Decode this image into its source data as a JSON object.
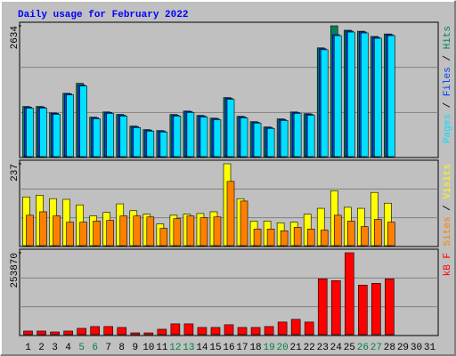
{
  "chart_data": [
    {
      "type": "bar",
      "title": "Daily usage for February 2022",
      "x": [
        1,
        2,
        3,
        4,
        5,
        6,
        7,
        8,
        9,
        10,
        11,
        12,
        13,
        14,
        15,
        16,
        17,
        18,
        19,
        20,
        21,
        22,
        23,
        24,
        25,
        26,
        27,
        28,
        29,
        30,
        31
      ],
      "ylim": [
        0,
        2634
      ],
      "yticks": [
        2634
      ],
      "grid": true,
      "legend_separator": " / ",
      "series": [
        {
          "name": "Hits",
          "color": "#00805c",
          "values": [
            1010,
            1010,
            880,
            1275,
            1477,
            795,
            900,
            850,
            615,
            545,
            525,
            848,
            918,
            830,
            775,
            1190,
            812,
            705,
            598,
            760,
            900,
            865,
            2190,
            2634,
            2545,
            2525,
            2420,
            2470,
            null,
            null,
            null
          ]
        },
        {
          "name": "Files",
          "color": "#0040ff",
          "values": [
            997,
            997,
            872,
            1264,
            1442,
            783,
            890,
            837,
            605,
            534,
            516,
            837,
            908,
            819,
            765,
            1175,
            801,
            694,
            587,
            748,
            890,
            854,
            2172,
            2456,
            2528,
            2510,
            2403,
            2456,
            null,
            null,
            null
          ]
        },
        {
          "name": "Pages",
          "color": "#00e0ff",
          "values": [
            977,
            977,
            852,
            1244,
            1422,
            763,
            870,
            817,
            585,
            514,
            496,
            817,
            888,
            799,
            745,
            1155,
            781,
            674,
            567,
            728,
            870,
            834,
            2152,
            2436,
            2508,
            2490,
            2383,
            2436,
            null,
            null,
            null
          ]
        }
      ]
    },
    {
      "type": "bar",
      "x": [
        1,
        2,
        3,
        4,
        5,
        6,
        7,
        8,
        9,
        10,
        11,
        12,
        13,
        14,
        15,
        16,
        17,
        18,
        19,
        20,
        21,
        22,
        23,
        24,
        25,
        26,
        27,
        28,
        29,
        30,
        31
      ],
      "ylim": [
        0,
        237
      ],
      "yticks": [
        237
      ],
      "grid": true,
      "legend_separator": " / ",
      "series": [
        {
          "name": "Visits",
          "color": "#ffff00",
          "values": [
            141,
            146,
            136,
            134,
            118,
            86,
            96,
            121,
            101,
            91,
            63,
            88,
            91,
            93,
            98,
            237,
            136,
            71,
            71,
            66,
            68,
            91,
            108,
            159,
            111,
            108,
            154,
            123,
            null,
            null,
            null
          ]
        },
        {
          "name": "Sites",
          "color": "#ff8000",
          "values": [
            88,
            98,
            86,
            68,
            68,
            71,
            73,
            86,
            86,
            83,
            50,
            78,
            86,
            81,
            83,
            186,
            129,
            48,
            48,
            43,
            53,
            48,
            45,
            88,
            71,
            55,
            76,
            68,
            null,
            null,
            null
          ]
        }
      ]
    },
    {
      "type": "bar",
      "x": [
        1,
        2,
        3,
        4,
        5,
        6,
        7,
        8,
        9,
        10,
        11,
        12,
        13,
        14,
        15,
        16,
        17,
        18,
        19,
        20,
        21,
        22,
        23,
        24,
        25,
        26,
        27,
        28,
        29,
        30,
        31
      ],
      "ylim": [
        0,
        253870
      ],
      "yticks": [
        253870
      ],
      "grid": true,
      "highlight_x": [
        5,
        6,
        12,
        13,
        19,
        20,
        26,
        27
      ],
      "highlight_color": "#008040",
      "series": [
        {
          "name": "kB F",
          "color": "#ff0000",
          "values": [
            11160,
            11160,
            8370,
            11160,
            19530,
            25110,
            25110,
            22320,
            5580,
            5580,
            16740,
            33480,
            33480,
            22320,
            22320,
            30690,
            22320,
            22320,
            25110,
            39060,
            47430,
            39060,
            172980,
            167400,
            253870,
            153450,
            159030,
            172980,
            null,
            null,
            null
          ]
        }
      ]
    }
  ]
}
